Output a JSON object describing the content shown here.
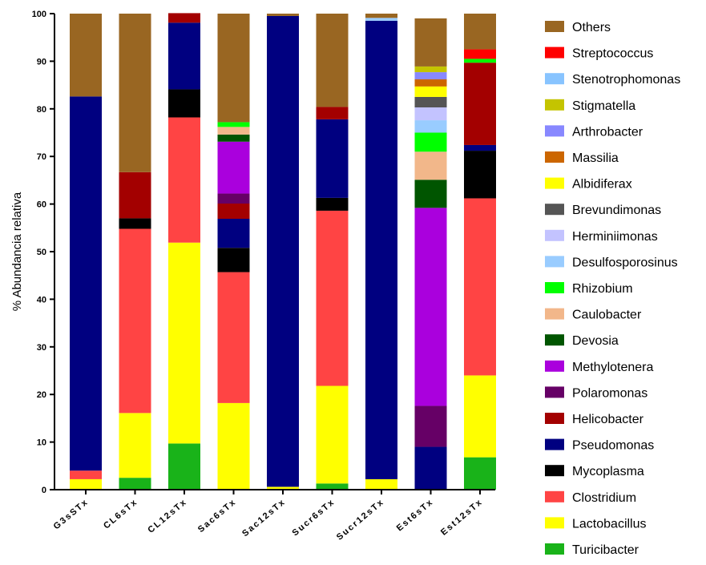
{
  "chart_data": {
    "type": "bar",
    "stacked": true,
    "title": "",
    "xlabel": "",
    "ylabel": "% Abundancia relativa",
    "ylim": [
      0,
      100
    ],
    "yticks": [
      0,
      10,
      20,
      30,
      40,
      50,
      60,
      70,
      80,
      90,
      100
    ],
    "grid": false,
    "legend_position": "right",
    "categories": [
      "G3sSTx",
      "CL6sTx",
      "CL12sTx",
      "Sac6sTx",
      "Sac12sTx",
      "Sucr6sTx",
      "Sucr12sTx",
      "Est6sTx",
      "Est12sTx"
    ],
    "series": [
      {
        "name": "Turicibacter",
        "color": "#19b319",
        "values": [
          0,
          2.5,
          9.7,
          0,
          0,
          1.3,
          0,
          0,
          6.8
        ]
      },
      {
        "name": "Lactobacillus",
        "color": "#ffff00",
        "values": [
          2.2,
          13.6,
          42.2,
          18.2,
          0.6,
          20.5,
          2.2,
          0,
          17.2
        ]
      },
      {
        "name": "Clostridium",
        "color": "#ff4444",
        "values": [
          1.8,
          38.7,
          26.3,
          27.5,
          0,
          36.8,
          0,
          0,
          37.2
        ]
      },
      {
        "name": "Mycoplasma",
        "color": "#000000",
        "values": [
          0,
          2.2,
          5.9,
          5.1,
          0,
          2.7,
          0,
          0,
          10.0
        ]
      },
      {
        "name": "Pseudomonas",
        "color": "#000080",
        "values": [
          78.6,
          0,
          14.0,
          6.1,
          98.9,
          16.5,
          96.3,
          9.0,
          1.2
        ]
      },
      {
        "name": "Helicobacter",
        "color": "#a30000",
        "values": [
          0,
          9.7,
          2.0,
          3.2,
          0,
          2.6,
          0,
          0,
          17.3
        ]
      },
      {
        "name": "Polaromonas",
        "color": "#660066",
        "values": [
          0,
          0,
          0,
          2.1,
          0,
          0,
          0,
          8.6,
          0
        ]
      },
      {
        "name": "Methylotenera",
        "color": "#aa00dd",
        "values": [
          0,
          0,
          0,
          10.9,
          0,
          0,
          0,
          41.6,
          0
        ]
      },
      {
        "name": "Devosia",
        "color": "#005500",
        "values": [
          0,
          0,
          0,
          1.5,
          0,
          0,
          0,
          5.9,
          0
        ]
      },
      {
        "name": "Caulobacter",
        "color": "#f2b78a",
        "values": [
          0,
          0,
          0,
          1.6,
          0,
          0,
          0,
          5.9,
          0
        ]
      },
      {
        "name": "Rhizobium",
        "color": "#00ff00",
        "values": [
          0,
          0,
          0,
          1.0,
          0,
          0,
          0,
          4.0,
          0.8
        ]
      },
      {
        "name": "Desulfosporosinus",
        "color": "#99ccff",
        "values": [
          0,
          0,
          0,
          0,
          0,
          0,
          0.6,
          2.6,
          0
        ]
      },
      {
        "name": "Herminiimonas",
        "color": "#c3c3ff",
        "values": [
          0,
          0,
          0,
          0,
          0,
          0,
          0,
          2.7,
          0
        ]
      },
      {
        "name": "Brevundimonas",
        "color": "#555555",
        "values": [
          0,
          0,
          0,
          0,
          0,
          0,
          0,
          2.2,
          0
        ]
      },
      {
        "name": "Albidiferax",
        "color": "#ffff00",
        "values": [
          0,
          0,
          0,
          0,
          0,
          0,
          0,
          2.2,
          0
        ]
      },
      {
        "name": "Massilia",
        "color": "#cc6600",
        "values": [
          0,
          0,
          0,
          0,
          0,
          0,
          0,
          1.5,
          0
        ]
      },
      {
        "name": "Arthrobacter",
        "color": "#8888ff",
        "values": [
          0,
          0,
          0,
          0,
          0,
          0,
          0,
          1.5,
          0
        ]
      },
      {
        "name": "Stigmatella",
        "color": "#c4c400",
        "values": [
          0,
          0,
          0,
          0,
          0,
          0,
          0,
          1.2,
          0
        ]
      },
      {
        "name": "Stenotrophomonas",
        "color": "#88c4ff",
        "values": [
          0,
          0,
          0,
          0,
          0,
          0,
          0,
          0,
          0
        ]
      },
      {
        "name": "Streptococcus",
        "color": "#ff0000",
        "values": [
          0,
          0,
          0,
          0,
          0,
          0,
          0,
          0,
          2.0
        ]
      },
      {
        "name": "Others",
        "color": "#996622",
        "values": [
          17.4,
          33.3,
          0,
          22.8,
          0.5,
          19.6,
          0.9,
          10.1,
          7.5
        ]
      }
    ]
  }
}
